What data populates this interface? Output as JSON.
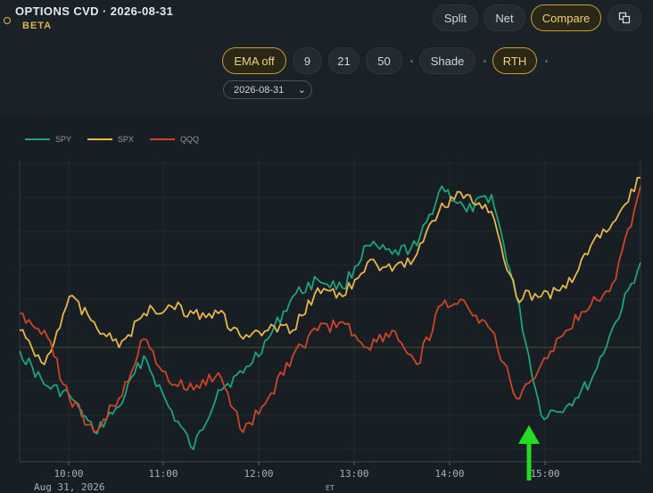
{
  "header": {
    "title": "OPTIONS CVD · 2026-08-31",
    "badge": "BETA"
  },
  "view_buttons": [
    {
      "label": "Split",
      "active": false
    },
    {
      "label": "Net",
      "active": false
    },
    {
      "label": "Compare",
      "active": true
    }
  ],
  "popout_icon": "popout-icon",
  "toolbar": {
    "ema_off": "EMA off",
    "ema_9": "9",
    "ema_21": "21",
    "ema_50": "50",
    "shade": "Shade",
    "rth": "RTH"
  },
  "date_select": {
    "value": "2026-08-31"
  },
  "colors": {
    "SPY": "#1fa37a",
    "SPX": "#e8b64a",
    "QQQ": "#cf4426",
    "accent": "#c79c35",
    "arrow": "#22dd22"
  },
  "chart_data": {
    "type": "line",
    "x_ticks": [
      "10:00",
      "11:00",
      "12:00",
      "13:00",
      "14:00",
      "15:00"
    ],
    "x_date_label": "Aug 31, 2026",
    "x_unit_label": "ET",
    "x": [
      "9:45",
      "10:00",
      "10:15",
      "10:30",
      "10:45",
      "11:00",
      "11:15",
      "11:30",
      "11:45",
      "12:00",
      "12:15",
      "12:30",
      "12:45",
      "13:00",
      "13:15",
      "13:30",
      "13:45",
      "14:00",
      "14:15",
      "14:30",
      "14:45",
      "15:00",
      "15:15",
      "15:30",
      "15:45",
      "16:00"
    ],
    "ylim": [
      -1,
      1
    ],
    "legend": [
      "SPY",
      "SPX",
      "QQQ"
    ],
    "series": [
      {
        "name": "SPY",
        "values": [
          -0.02,
          -0.22,
          -0.28,
          -0.5,
          -0.35,
          -0.05,
          -0.35,
          -0.6,
          -0.25,
          -0.15,
          0.05,
          0.3,
          0.4,
          0.35,
          0.6,
          0.55,
          0.6,
          0.95,
          0.8,
          0.9,
          0.3,
          -0.4,
          -0.35,
          -0.2,
          0.15,
          0.5
        ]
      },
      {
        "name": "SPX",
        "values": [
          0.1,
          -0.1,
          0.3,
          0.15,
          0.0,
          0.2,
          0.25,
          0.2,
          0.2,
          0.05,
          0.1,
          0.1,
          0.35,
          0.3,
          0.5,
          0.45,
          0.55,
          0.85,
          0.9,
          0.8,
          0.3,
          0.3,
          0.35,
          0.6,
          0.75,
          1.0
        ]
      },
      {
        "name": "QQQ",
        "values": [
          0.2,
          0.1,
          -0.3,
          -0.5,
          -0.3,
          0.05,
          -0.2,
          -0.25,
          -0.15,
          -0.5,
          -0.3,
          -0.05,
          0.1,
          0.15,
          0.0,
          0.1,
          -0.1,
          0.25,
          0.25,
          0.1,
          -0.3,
          -0.1,
          0.1,
          0.25,
          0.4,
          0.95
        ]
      }
    ]
  }
}
